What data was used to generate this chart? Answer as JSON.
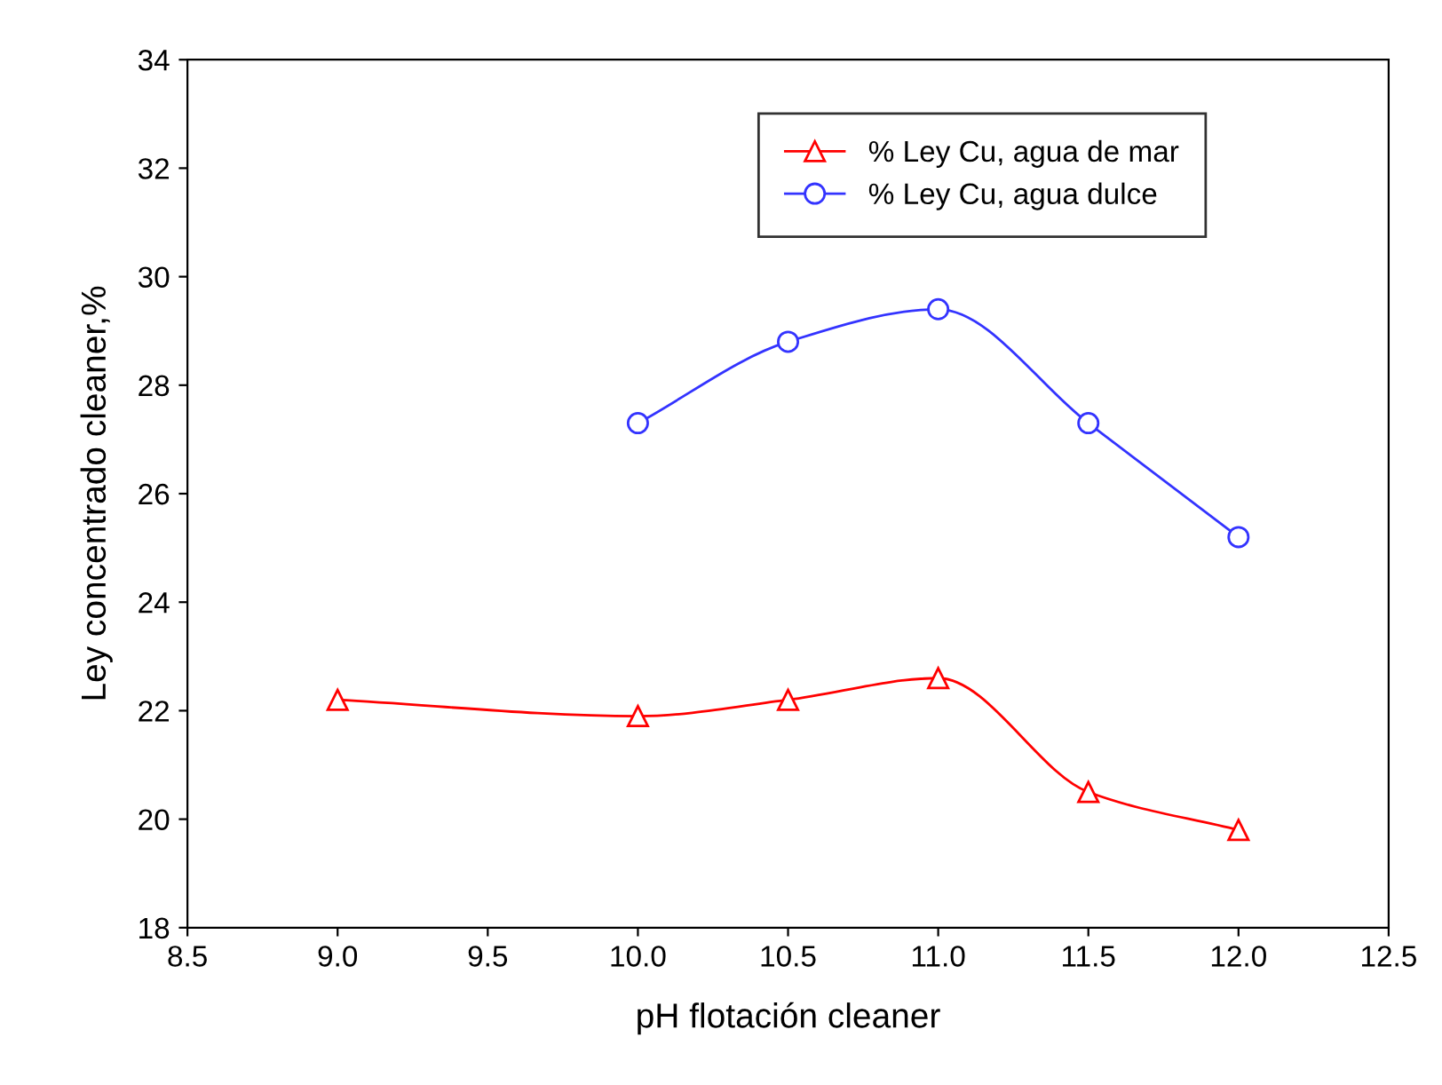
{
  "chart_data": {
    "type": "line",
    "xlabel": "pH flotación cleaner",
    "ylabel": "Ley concentrado cleaner,%",
    "series": [
      {
        "name": "% Ley Cu, agua de mar",
        "color": "#ff0000",
        "marker": "triangle",
        "x": [
          9.0,
          10.0,
          10.5,
          11.0,
          11.5,
          12.0
        ],
        "values": [
          22.2,
          21.9,
          22.2,
          22.6,
          20.5,
          19.8
        ]
      },
      {
        "name": "% Ley Cu, agua dulce",
        "color": "#3333ff",
        "marker": "circle",
        "x": [
          10.0,
          10.5,
          11.0,
          11.5,
          12.0
        ],
        "values": [
          27.3,
          28.8,
          29.4,
          27.3,
          25.2
        ]
      }
    ],
    "xlim": [
      8.5,
      12.5
    ],
    "xticks": [
      {
        "value": 8.5,
        "label": "8.5"
      },
      {
        "value": 9,
        "label": "9.0"
      },
      {
        "value": 9.5,
        "label": "9.5"
      },
      {
        "value": 10,
        "label": "10.0"
      },
      {
        "value": 10.5,
        "label": "10.5"
      },
      {
        "value": 11,
        "label": "11.0"
      },
      {
        "value": 11.5,
        "label": "11.5"
      },
      {
        "value": 12,
        "label": "12.0"
      },
      {
        "value": 12.5,
        "label": "12.5"
      }
    ],
    "ylim": [
      18,
      34
    ],
    "yticks": [
      18,
      20,
      22,
      24,
      26,
      28,
      30,
      32,
      34
    ],
    "grid": false,
    "legend": "top right",
    "line_style": "solid"
  }
}
